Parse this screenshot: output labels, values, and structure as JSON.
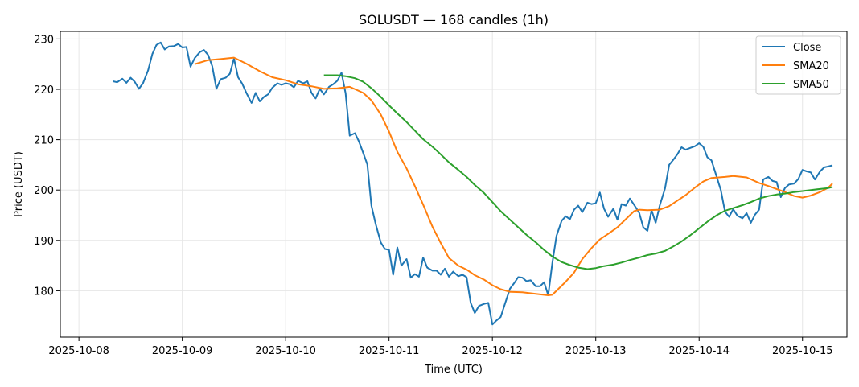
{
  "chart_data": {
    "type": "line",
    "title": "SOLUSDT — 168 candles (1h)",
    "xlabel": "Time (UTC)",
    "ylabel": "Price (USDT)",
    "x_tick_labels": [
      "2025-10-08",
      "2025-10-09",
      "2025-10-10",
      "2025-10-11",
      "2025-10-12",
      "2025-10-13",
      "2025-10-14",
      "2025-10-15"
    ],
    "x_range_days": [
      -0.18,
      7.43
    ],
    "y_ticks": [
      180,
      190,
      200,
      210,
      220,
      230
    ],
    "ylim": [
      170.8,
      231.5
    ],
    "grid": true,
    "legend_position": "top-right",
    "x_unit": "days since 2025-10-08 00:00 UTC",
    "series": [
      {
        "name": "Close",
        "color": "#1f77b4",
        "points": [
          [
            0.33,
            221.6
          ],
          [
            0.37,
            221.4
          ],
          [
            0.42,
            222.1
          ],
          [
            0.46,
            221.3
          ],
          [
            0.5,
            222.3
          ],
          [
            0.54,
            221.5
          ],
          [
            0.58,
            220.1
          ],
          [
            0.62,
            221.2
          ],
          [
            0.67,
            223.8
          ],
          [
            0.71,
            227
          ],
          [
            0.75,
            228.8
          ],
          [
            0.79,
            229.3
          ],
          [
            0.83,
            227.9
          ],
          [
            0.87,
            228.5
          ],
          [
            0.92,
            228.6
          ],
          [
            0.96,
            229
          ],
          [
            1,
            228.3
          ],
          [
            1.04,
            228.4
          ],
          [
            1.08,
            224.5
          ],
          [
            1.12,
            226.2
          ],
          [
            1.17,
            227.4
          ],
          [
            1.21,
            227.8
          ],
          [
            1.25,
            226.8
          ],
          [
            1.29,
            224.6
          ],
          [
            1.33,
            220.1
          ],
          [
            1.37,
            222
          ],
          [
            1.42,
            222.3
          ],
          [
            1.46,
            223.1
          ],
          [
            1.5,
            226.1
          ],
          [
            1.54,
            222.4
          ],
          [
            1.58,
            221.1
          ],
          [
            1.62,
            219.3
          ],
          [
            1.67,
            217.3
          ],
          [
            1.71,
            219.3
          ],
          [
            1.75,
            217.6
          ],
          [
            1.79,
            218.5
          ],
          [
            1.83,
            219
          ],
          [
            1.87,
            220.3
          ],
          [
            1.92,
            221.2
          ],
          [
            1.96,
            220.9
          ],
          [
            2,
            221.2
          ],
          [
            2.04,
            221
          ],
          [
            2.08,
            220.4
          ],
          [
            2.12,
            221.7
          ],
          [
            2.17,
            221.2
          ],
          [
            2.21,
            221.6
          ],
          [
            2.25,
            219.3
          ],
          [
            2.29,
            218.2
          ],
          [
            2.33,
            220.1
          ],
          [
            2.37,
            219
          ],
          [
            2.42,
            220.5
          ],
          [
            2.46,
            221
          ],
          [
            2.5,
            221.7
          ],
          [
            2.54,
            223.3
          ],
          [
            2.58,
            219.2
          ],
          [
            2.62,
            210.8
          ],
          [
            2.67,
            211.3
          ],
          [
            2.71,
            209.6
          ],
          [
            2.75,
            207.4
          ],
          [
            2.79,
            205.1
          ],
          [
            2.83,
            196.9
          ],
          [
            2.87,
            193.3
          ],
          [
            2.92,
            189.6
          ],
          [
            2.96,
            188.3
          ],
          [
            3,
            188.1
          ],
          [
            3.04,
            183.2
          ],
          [
            3.08,
            188.6
          ],
          [
            3.12,
            185
          ],
          [
            3.17,
            186.3
          ],
          [
            3.21,
            182.6
          ],
          [
            3.25,
            183.3
          ],
          [
            3.29,
            182.8
          ],
          [
            3.33,
            186.6
          ],
          [
            3.37,
            184.6
          ],
          [
            3.42,
            184
          ],
          [
            3.46,
            184
          ],
          [
            3.5,
            183.2
          ],
          [
            3.54,
            184.4
          ],
          [
            3.58,
            182.8
          ],
          [
            3.62,
            183.8
          ],
          [
            3.67,
            182.9
          ],
          [
            3.71,
            183.2
          ],
          [
            3.75,
            182.7
          ],
          [
            3.79,
            177.6
          ],
          [
            3.83,
            175.6
          ],
          [
            3.87,
            177
          ],
          [
            3.92,
            177.4
          ],
          [
            3.96,
            177.6
          ],
          [
            4,
            173.3
          ],
          [
            4.04,
            174.1
          ],
          [
            4.08,
            174.8
          ],
          [
            4.12,
            177.3
          ],
          [
            4.17,
            180.4
          ],
          [
            4.21,
            181.5
          ],
          [
            4.25,
            182.7
          ],
          [
            4.29,
            182.6
          ],
          [
            4.33,
            181.9
          ],
          [
            4.37,
            182.1
          ],
          [
            4.42,
            180.9
          ],
          [
            4.46,
            180.9
          ],
          [
            4.5,
            181.7
          ],
          [
            4.54,
            179.1
          ],
          [
            4.58,
            185.5
          ],
          [
            4.62,
            190.9
          ],
          [
            4.67,
            193.9
          ],
          [
            4.71,
            194.8
          ],
          [
            4.75,
            194.2
          ],
          [
            4.79,
            196.1
          ],
          [
            4.83,
            196.9
          ],
          [
            4.87,
            195.6
          ],
          [
            4.92,
            197.5
          ],
          [
            4.96,
            197.2
          ],
          [
            5,
            197.4
          ],
          [
            5.04,
            199.5
          ],
          [
            5.08,
            196.3
          ],
          [
            5.12,
            194.7
          ],
          [
            5.17,
            196.3
          ],
          [
            5.21,
            194.1
          ],
          [
            5.25,
            197.2
          ],
          [
            5.29,
            196.9
          ],
          [
            5.33,
            198.3
          ],
          [
            5.37,
            197.1
          ],
          [
            5.42,
            195.5
          ],
          [
            5.46,
            192.6
          ],
          [
            5.5,
            191.9
          ],
          [
            5.54,
            196
          ],
          [
            5.58,
            193.5
          ],
          [
            5.62,
            197
          ],
          [
            5.67,
            200.3
          ],
          [
            5.71,
            205
          ],
          [
            5.75,
            206
          ],
          [
            5.79,
            207.1
          ],
          [
            5.83,
            208.5
          ],
          [
            5.87,
            208
          ],
          [
            5.92,
            208.4
          ],
          [
            5.96,
            208.7
          ],
          [
            6,
            209.3
          ],
          [
            6.04,
            208.6
          ],
          [
            6.08,
            206.5
          ],
          [
            6.12,
            205.9
          ],
          [
            6.17,
            202.6
          ],
          [
            6.21,
            200
          ],
          [
            6.25,
            195.7
          ],
          [
            6.29,
            194.7
          ],
          [
            6.33,
            196.2
          ],
          [
            6.37,
            194.9
          ],
          [
            6.42,
            194.4
          ],
          [
            6.46,
            195.4
          ],
          [
            6.5,
            193.5
          ],
          [
            6.54,
            195.1
          ],
          [
            6.58,
            196.1
          ],
          [
            6.62,
            202.1
          ],
          [
            6.67,
            202.6
          ],
          [
            6.71,
            201.8
          ],
          [
            6.75,
            201.6
          ],
          [
            6.79,
            198.6
          ],
          [
            6.83,
            200.4
          ],
          [
            6.87,
            201.1
          ],
          [
            6.92,
            201.3
          ],
          [
            6.96,
            202.2
          ],
          [
            7,
            204
          ],
          [
            7.04,
            203.7
          ],
          [
            7.08,
            203.5
          ],
          [
            7.12,
            202.1
          ],
          [
            7.17,
            203.7
          ],
          [
            7.21,
            204.5
          ],
          [
            7.25,
            204.7
          ],
          [
            7.29,
            204.9
          ]
        ]
      },
      {
        "name": "SMA20",
        "color": "#ff7f0e",
        "points": [
          [
            1.12,
            225
          ],
          [
            1.25,
            225.8
          ],
          [
            1.37,
            226
          ],
          [
            1.5,
            226.3
          ],
          [
            1.62,
            225.1
          ],
          [
            1.75,
            223.6
          ],
          [
            1.87,
            222.4
          ],
          [
            2,
            221.8
          ],
          [
            2.12,
            221
          ],
          [
            2.25,
            220.6
          ],
          [
            2.37,
            220.1
          ],
          [
            2.5,
            220.2
          ],
          [
            2.62,
            220.5
          ],
          [
            2.75,
            219.3
          ],
          [
            2.83,
            217.8
          ],
          [
            2.92,
            215
          ],
          [
            3,
            211.6
          ],
          [
            3.08,
            207.6
          ],
          [
            3.17,
            204.3
          ],
          [
            3.25,
            200.8
          ],
          [
            3.33,
            197.1
          ],
          [
            3.42,
            192.7
          ],
          [
            3.5,
            189.5
          ],
          [
            3.58,
            186.5
          ],
          [
            3.67,
            185
          ],
          [
            3.75,
            184.2
          ],
          [
            3.83,
            183.1
          ],
          [
            3.92,
            182.2
          ],
          [
            4,
            181.1
          ],
          [
            4.08,
            180.3
          ],
          [
            4.17,
            179.8
          ],
          [
            4.29,
            179.7
          ],
          [
            4.42,
            179.4
          ],
          [
            4.54,
            179.1
          ],
          [
            4.58,
            179.2
          ],
          [
            4.62,
            180
          ],
          [
            4.71,
            181.8
          ],
          [
            4.79,
            183.6
          ],
          [
            4.87,
            186.3
          ],
          [
            4.96,
            188.5
          ],
          [
            5.04,
            190.2
          ],
          [
            5.12,
            191.3
          ],
          [
            5.21,
            192.6
          ],
          [
            5.29,
            194.2
          ],
          [
            5.37,
            195.8
          ],
          [
            5.42,
            196.1
          ],
          [
            5.5,
            196
          ],
          [
            5.62,
            196.1
          ],
          [
            5.71,
            196.8
          ],
          [
            5.79,
            197.9
          ],
          [
            5.87,
            199
          ],
          [
            5.96,
            200.5
          ],
          [
            6.04,
            201.7
          ],
          [
            6.12,
            202.4
          ],
          [
            6.25,
            202.6
          ],
          [
            6.33,
            202.8
          ],
          [
            6.46,
            202.5
          ],
          [
            6.58,
            201.4
          ],
          [
            6.67,
            200.8
          ],
          [
            6.75,
            200.2
          ],
          [
            6.83,
            199.6
          ],
          [
            6.92,
            198.8
          ],
          [
            7,
            198.5
          ],
          [
            7.08,
            198.9
          ],
          [
            7.17,
            199.6
          ],
          [
            7.25,
            200.5
          ],
          [
            7.29,
            201.3
          ]
        ]
      },
      {
        "name": "SMA50",
        "color": "#2ca02c",
        "points": [
          [
            2.37,
            222.8
          ],
          [
            2.5,
            222.8
          ],
          [
            2.58,
            222.6
          ],
          [
            2.67,
            222.2
          ],
          [
            2.75,
            221.5
          ],
          [
            2.83,
            220.2
          ],
          [
            2.92,
            218.5
          ],
          [
            3,
            216.8
          ],
          [
            3.08,
            215.2
          ],
          [
            3.17,
            213.5
          ],
          [
            3.25,
            211.8
          ],
          [
            3.33,
            210.1
          ],
          [
            3.42,
            208.6
          ],
          [
            3.5,
            207.1
          ],
          [
            3.58,
            205.5
          ],
          [
            3.67,
            204
          ],
          [
            3.75,
            202.6
          ],
          [
            3.83,
            201
          ],
          [
            3.92,
            199.4
          ],
          [
            4,
            197.6
          ],
          [
            4.08,
            195.8
          ],
          [
            4.17,
            194.1
          ],
          [
            4.25,
            192.6
          ],
          [
            4.33,
            191.1
          ],
          [
            4.42,
            189.6
          ],
          [
            4.5,
            188.1
          ],
          [
            4.58,
            186.8
          ],
          [
            4.67,
            185.7
          ],
          [
            4.75,
            185.1
          ],
          [
            4.83,
            184.6
          ],
          [
            4.92,
            184.3
          ],
          [
            5,
            184.5
          ],
          [
            5.08,
            184.9
          ],
          [
            5.17,
            185.2
          ],
          [
            5.25,
            185.6
          ],
          [
            5.33,
            186.1
          ],
          [
            5.42,
            186.6
          ],
          [
            5.5,
            187.1
          ],
          [
            5.58,
            187.4
          ],
          [
            5.67,
            187.9
          ],
          [
            5.75,
            188.8
          ],
          [
            5.83,
            189.8
          ],
          [
            5.92,
            191.1
          ],
          [
            6,
            192.4
          ],
          [
            6.08,
            193.7
          ],
          [
            6.17,
            195
          ],
          [
            6.25,
            195.9
          ],
          [
            6.33,
            196.4
          ],
          [
            6.42,
            197
          ],
          [
            6.5,
            197.6
          ],
          [
            6.58,
            198.3
          ],
          [
            6.67,
            198.8
          ],
          [
            6.75,
            199.1
          ],
          [
            6.83,
            199.3
          ],
          [
            6.92,
            199.6
          ],
          [
            7,
            199.8
          ],
          [
            7.08,
            200
          ],
          [
            7.17,
            200.2
          ],
          [
            7.25,
            200.4
          ],
          [
            7.29,
            200.6
          ]
        ]
      }
    ]
  }
}
